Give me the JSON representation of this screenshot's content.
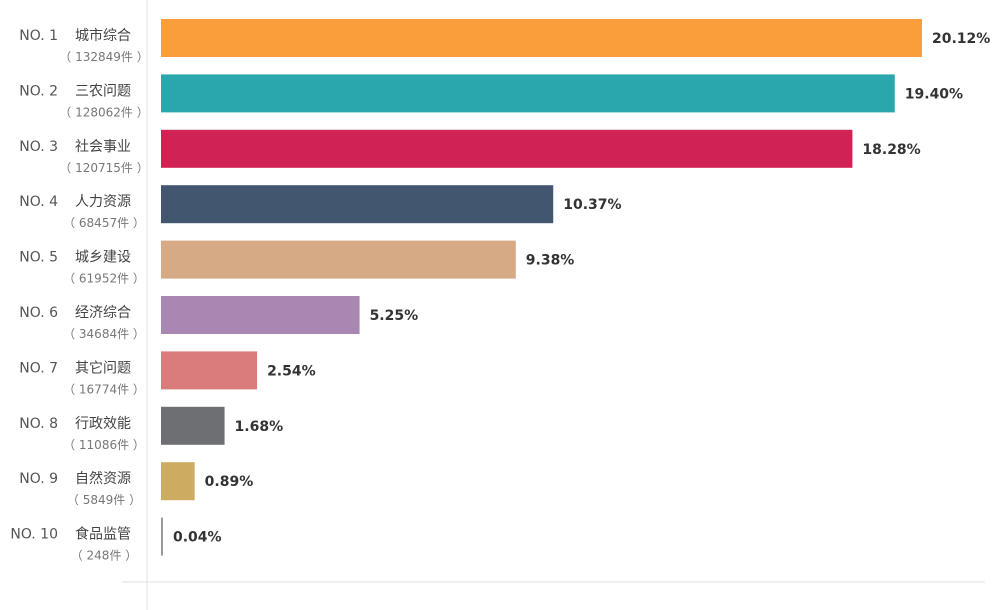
{
  "chart_data": {
    "type": "bar",
    "orientation": "horizontal",
    "title": "",
    "xlabel": "",
    "ylabel": "",
    "xlim": [
      0,
      20.12
    ],
    "grid": false,
    "legend": "none",
    "categories": [
      "城市综合",
      "三农问题",
      "社会事业",
      "人力资源",
      "城乡建设",
      "经济综合",
      "其它问题",
      "行政效能",
      "自然资源",
      "食品监管"
    ],
    "ranks": [
      "NO. 1",
      "NO. 2",
      "NO. 3",
      "NO. 4",
      "NO. 5",
      "NO. 6",
      "NO. 7",
      "NO. 8",
      "NO. 9",
      "NO. 10"
    ],
    "counts": [
      "（ 132849件 ）",
      "（ 128062件 ）",
      "（ 120715件 ）",
      "（ 68457件 ）",
      "（ 61952件 ）",
      "（ 34684件 ）",
      "（ 16774件 ）",
      "（ 11086件 ）",
      "（ 5849件 ）",
      "（ 248件 ）"
    ],
    "values": [
      20.12,
      19.4,
      18.28,
      10.37,
      9.38,
      5.25,
      2.54,
      1.68,
      0.89,
      0.04
    ],
    "value_labels": [
      "20.12%",
      "19.40%",
      "18.28%",
      "10.37%",
      "9.38%",
      "5.25%",
      "2.54%",
      "1.68%",
      "0.89%",
      "0.04%"
    ],
    "colors": [
      "#FA9E3C",
      "#2AA7AC",
      "#D12254",
      "#435670",
      "#D6AA84",
      "#A887B2",
      "#DB7C7C",
      "#6E6F73",
      "#CDAC61",
      "#9A9A9A"
    ]
  }
}
